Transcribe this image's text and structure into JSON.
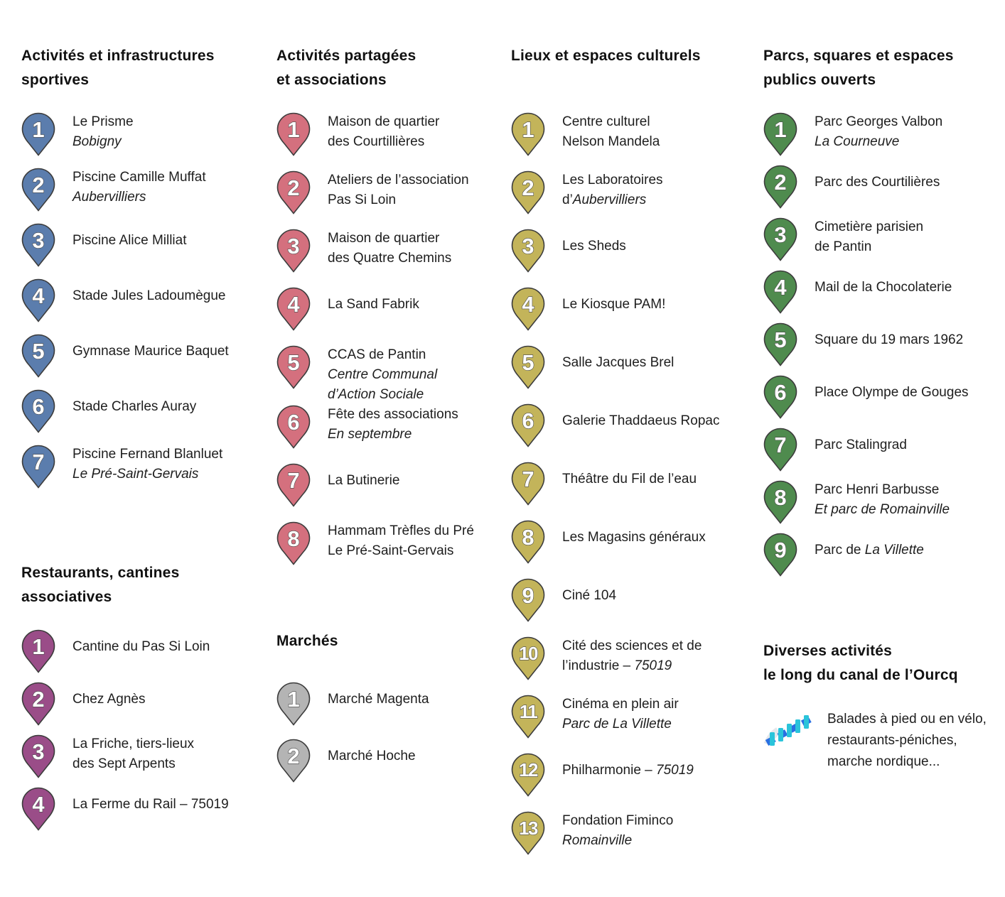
{
  "page": {
    "background": "#ffffff",
    "text_color": "#1e1e1e"
  },
  "sections": [
    {
      "key": "sports",
      "column": 1,
      "title": "Activités et infrastructures\nsportives",
      "pin_color": "#5b7dad",
      "items": [
        {
          "num": "1",
          "lines": [
            [
              {
                "t": "Le Prisme",
                "i": 0
              }
            ],
            [
              {
                "t": "Bobigny",
                "i": 1
              }
            ]
          ]
        },
        {
          "num": "2",
          "lines": [
            [
              {
                "t": "Piscine Camille Muffat",
                "i": 0
              }
            ],
            [
              {
                "t": "Aubervilliers",
                "i": 1
              }
            ]
          ]
        },
        {
          "num": "3",
          "lines": [
            [
              {
                "t": "Piscine Alice Milliat",
                "i": 0
              }
            ]
          ]
        },
        {
          "num": "4",
          "lines": [
            [
              {
                "t": "Stade Jules Ladoumègue",
                "i": 0
              }
            ]
          ]
        },
        {
          "num": "5",
          "lines": [
            [
              {
                "t": "Gymnase Maurice Baquet",
                "i": 0
              }
            ]
          ]
        },
        {
          "num": "6",
          "lines": [
            [
              {
                "t": "Stade Charles Auray",
                "i": 0
              }
            ]
          ]
        },
        {
          "num": "7",
          "lines": [
            [
              {
                "t": "Piscine Fernand Blanluet",
                "i": 0
              }
            ],
            [
              {
                "t": "Le Pré-Saint-Gervais",
                "i": 1
              }
            ]
          ]
        }
      ]
    },
    {
      "key": "restaurants",
      "column": 1,
      "title": "Restaurants, cantines\nassociatives",
      "pin_color": "#9a4d88",
      "items": [
        {
          "num": "1",
          "lines": [
            [
              {
                "t": "Cantine du Pas Si Loin",
                "i": 0
              }
            ]
          ]
        },
        {
          "num": "2",
          "lines": [
            [
              {
                "t": "Chez Agnès",
                "i": 0
              }
            ]
          ]
        },
        {
          "num": "3",
          "lines": [
            [
              {
                "t": "La Friche, tiers-lieux",
                "i": 0
              }
            ],
            [
              {
                "t": "des Sept Arpents",
                "i": 0
              }
            ]
          ]
        },
        {
          "num": "4",
          "lines": [
            [
              {
                "t": "La Ferme du Rail – 75019",
                "i": 0
              }
            ]
          ]
        }
      ]
    },
    {
      "key": "partagees",
      "column": 2,
      "title": "Activités partagées\net associations",
      "pin_color": "#d4707e",
      "items": [
        {
          "num": "1",
          "lines": [
            [
              {
                "t": "Maison de quartier",
                "i": 0
              }
            ],
            [
              {
                "t": "des Courtillières",
                "i": 0
              }
            ]
          ]
        },
        {
          "num": "2",
          "lines": [
            [
              {
                "t": "Ateliers de l’association",
                "i": 0
              }
            ],
            [
              {
                "t": "Pas Si Loin",
                "i": 0
              }
            ]
          ]
        },
        {
          "num": "3",
          "lines": [
            [
              {
                "t": "Maison de quartier",
                "i": 0
              }
            ],
            [
              {
                "t": "des Quatre Chemins",
                "i": 0
              }
            ]
          ]
        },
        {
          "num": "4",
          "lines": [
            [
              {
                "t": "La Sand Fabrik",
                "i": 0
              }
            ]
          ]
        },
        {
          "num": "5",
          "lines": [
            [
              {
                "t": "CCAS de Pantin",
                "i": 0
              }
            ],
            [
              {
                "t": "Centre Communal",
                "i": 1
              }
            ],
            [
              {
                "t": "d’Action Sociale",
                "i": 1
              }
            ]
          ]
        },
        {
          "num": "6",
          "lines": [
            [
              {
                "t": "Fête des associations",
                "i": 0
              }
            ],
            [
              {
                "t": "En septembre",
                "i": 1
              }
            ]
          ]
        },
        {
          "num": "7",
          "lines": [
            [
              {
                "t": "La Butinerie",
                "i": 0
              }
            ]
          ]
        },
        {
          "num": "8",
          "lines": [
            [
              {
                "t": "Hammam Trèfles du Pré",
                "i": 0
              }
            ],
            [
              {
                "t": "Le Pré-Saint-Gervais",
                "i": 0
              }
            ]
          ]
        }
      ]
    },
    {
      "key": "marches",
      "column": 2,
      "title": "Marchés",
      "pin_color": "#b4b4b4",
      "items": [
        {
          "num": "1",
          "lines": [
            [
              {
                "t": "Marché Magenta",
                "i": 0
              }
            ]
          ]
        },
        {
          "num": "2",
          "lines": [
            [
              {
                "t": "Marché Hoche",
                "i": 0
              }
            ]
          ]
        }
      ]
    },
    {
      "key": "culturels",
      "column": 3,
      "title": "Lieux et espaces culturels",
      "pin_color": "#c3b45a",
      "items": [
        {
          "num": "1",
          "lines": [
            [
              {
                "t": "Centre culturel",
                "i": 0
              }
            ],
            [
              {
                "t": "Nelson Mandela",
                "i": 0
              }
            ]
          ]
        },
        {
          "num": "2",
          "lines": [
            [
              {
                "t": "Les Laboratoires",
                "i": 0
              }
            ],
            [
              {
                "t": "d’",
                "i": 0
              },
              {
                "t": "Aubervilliers",
                "i": 1
              }
            ]
          ]
        },
        {
          "num": "3",
          "lines": [
            [
              {
                "t": "Les Sheds",
                "i": 0
              }
            ]
          ]
        },
        {
          "num": "4",
          "lines": [
            [
              {
                "t": "Le Kiosque PAM!",
                "i": 0
              }
            ]
          ]
        },
        {
          "num": "5",
          "lines": [
            [
              {
                "t": "Salle Jacques Brel",
                "i": 0
              }
            ]
          ]
        },
        {
          "num": "6",
          "lines": [
            [
              {
                "t": "Galerie Thaddaeus Ropac",
                "i": 0
              }
            ]
          ]
        },
        {
          "num": "7",
          "lines": [
            [
              {
                "t": "Théâtre du Fil de l’eau",
                "i": 0
              }
            ]
          ]
        },
        {
          "num": "8",
          "lines": [
            [
              {
                "t": "Les Magasins généraux",
                "i": 0
              }
            ]
          ]
        },
        {
          "num": "9",
          "lines": [
            [
              {
                "t": "Ciné 104",
                "i": 0
              }
            ]
          ]
        },
        {
          "num": "10",
          "lines": [
            [
              {
                "t": "Cité des sciences et de",
                "i": 0
              }
            ],
            [
              {
                "t": "l’industrie – ",
                "i": 0
              },
              {
                "t": "75019",
                "i": 1
              }
            ]
          ]
        },
        {
          "num": "11",
          "lines": [
            [
              {
                "t": "Cinéma en plein air",
                "i": 0
              }
            ],
            [
              {
                "t": "Parc de La Villette",
                "i": 1
              }
            ]
          ]
        },
        {
          "num": "12",
          "lines": [
            [
              {
                "t": "Philharmonie – ",
                "i": 0
              },
              {
                "t": "75019",
                "i": 1
              }
            ]
          ]
        },
        {
          "num": "13",
          "lines": [
            [
              {
                "t": "Fondation Fiminco",
                "i": 0
              }
            ],
            [
              {
                "t": "Romainville",
                "i": 1
              }
            ]
          ]
        }
      ]
    },
    {
      "key": "parcs",
      "column": 4,
      "title": "Parcs, squares et espaces\npublics ouverts",
      "pin_color": "#4f8b4e",
      "items": [
        {
          "num": "1",
          "lines": [
            [
              {
                "t": "Parc Georges Valbon",
                "i": 0
              }
            ],
            [
              {
                "t": "La Courneuve",
                "i": 1
              }
            ]
          ]
        },
        {
          "num": "2",
          "lines": [
            [
              {
                "t": "Parc des Courtilières",
                "i": 0
              }
            ]
          ]
        },
        {
          "num": "3",
          "lines": [
            [
              {
                "t": "Cimetière parisien",
                "i": 0
              }
            ],
            [
              {
                "t": "de Pantin",
                "i": 0
              }
            ]
          ]
        },
        {
          "num": "4",
          "lines": [
            [
              {
                "t": "Mail de la Chocolaterie",
                "i": 0
              }
            ]
          ]
        },
        {
          "num": "5",
          "lines": [
            [
              {
                "t": "Square du 19 mars 1962",
                "i": 0
              }
            ]
          ]
        },
        {
          "num": "6",
          "lines": [
            [
              {
                "t": "Place Olympe de Gouges",
                "i": 0
              }
            ]
          ]
        },
        {
          "num": "7",
          "lines": [
            [
              {
                "t": "Parc Stalingrad",
                "i": 0
              }
            ]
          ]
        },
        {
          "num": "8",
          "lines": [
            [
              {
                "t": "Parc Henri Barbusse",
                "i": 0
              }
            ],
            [
              {
                "t": "Et parc de Romainville",
                "i": 1
              }
            ]
          ]
        },
        {
          "num": "9",
          "lines": [
            [
              {
                "t": "Parc de ",
                "i": 0
              },
              {
                "t": "La Villette",
                "i": 1
              }
            ]
          ]
        }
      ]
    },
    {
      "key": "diverses",
      "column": 4,
      "title": "Diverses activités\nle long du canal de l’Ourcq",
      "icon": "canal-stripes-icon",
      "icon_colors": {
        "blue": "#2a6fe2",
        "cyan": "#2ac4da",
        "shadow": "#e4e7ec"
      },
      "note": {
        "lines": [
          "Balades à pied ou en vélo,",
          "restaurants-péniches,",
          "marche nordique..."
        ]
      }
    }
  ]
}
